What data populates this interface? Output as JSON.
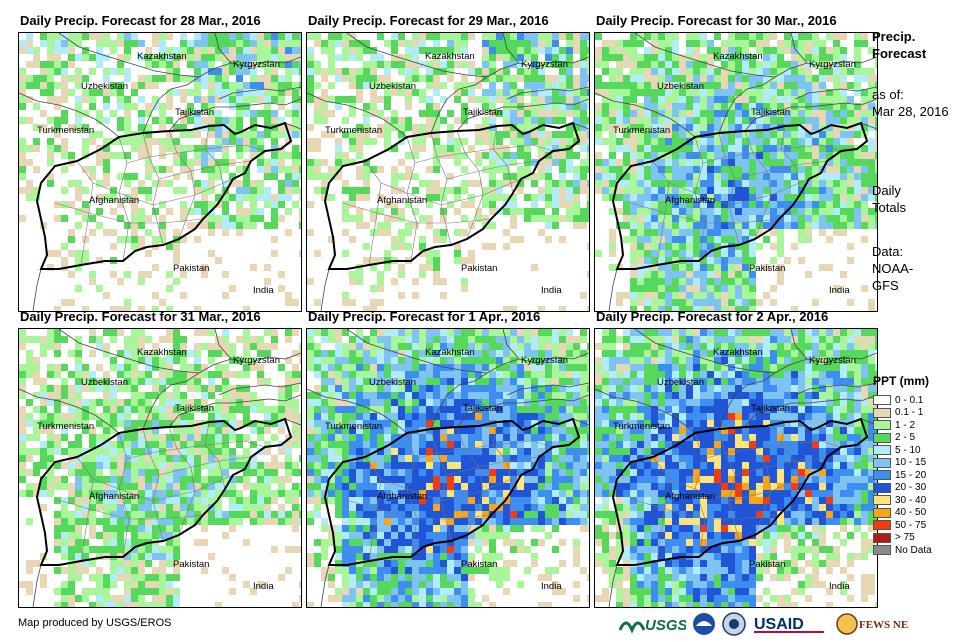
{
  "panels": [
    {
      "title": "Daily Precip. Forecast for 28 Mar., 2016",
      "intensity": 0.15
    },
    {
      "title": "Daily Precip. Forecast for 29 Mar., 2016",
      "intensity": 0.12
    },
    {
      "title": "Daily Precip. Forecast for 30 Mar., 2016",
      "intensity": 0.55
    },
    {
      "title": "Daily Precip. Forecast for 31 Mar., 2016",
      "intensity": 0.3
    },
    {
      "title": "Daily Precip. Forecast for 1 Apr., 2016",
      "intensity": 0.85
    },
    {
      "title": "Daily Precip. Forecast for 2 Apr., 2016",
      "intensity": 0.95
    }
  ],
  "map_labels": {
    "kazakhstan": "Kazakhstan",
    "kyrgyzstan": "Kyrgyzstan",
    "uzbekistan": "Uzbekistan",
    "tajikistan": "Tajikistan",
    "turkmenistan": "Turkmenistan",
    "afghanistan": "Afghanistan",
    "pakistan": "Pakistan",
    "india": "India"
  },
  "sidebar": {
    "title_line1": "Precip.",
    "title_line2": "Forecast",
    "asof_label": "as of:",
    "asof_date": "Mar 28, 2016",
    "daily_line1": "Daily",
    "daily_line2": "Totals",
    "data_line1": "Data:",
    "data_line2": "NOAA-",
    "data_line3": "GFS"
  },
  "legend": {
    "title": "PPT (mm)",
    "items": [
      {
        "label": "0 - 0.1",
        "color": "#ffffff"
      },
      {
        "label": "0.1 - 1",
        "color": "#e8d7b4"
      },
      {
        "label": "1 - 2",
        "color": "#a9f59a"
      },
      {
        "label": "2 - 5",
        "color": "#55d85c"
      },
      {
        "label": "5 - 10",
        "color": "#b2ecfa"
      },
      {
        "label": "10 - 15",
        "color": "#7fc3f3"
      },
      {
        "label": "15 - 20",
        "color": "#3d8ef0"
      },
      {
        "label": "20 - 30",
        "color": "#1f55d6"
      },
      {
        "label": "30 - 40",
        "color": "#fde47c"
      },
      {
        "label": "40 - 50",
        "color": "#f7a51b"
      },
      {
        "label": "50 - 75",
        "color": "#ef3c14"
      },
      {
        "label": "> 75",
        "color": "#a71f16"
      },
      {
        "label": "No Data",
        "color": "#8a8a8a"
      }
    ]
  },
  "credit": "Map produced by USGS/EROS",
  "logos": {
    "usgs": "USGS",
    "usaid": "USAID",
    "fewsnet": "FEWS NET"
  }
}
